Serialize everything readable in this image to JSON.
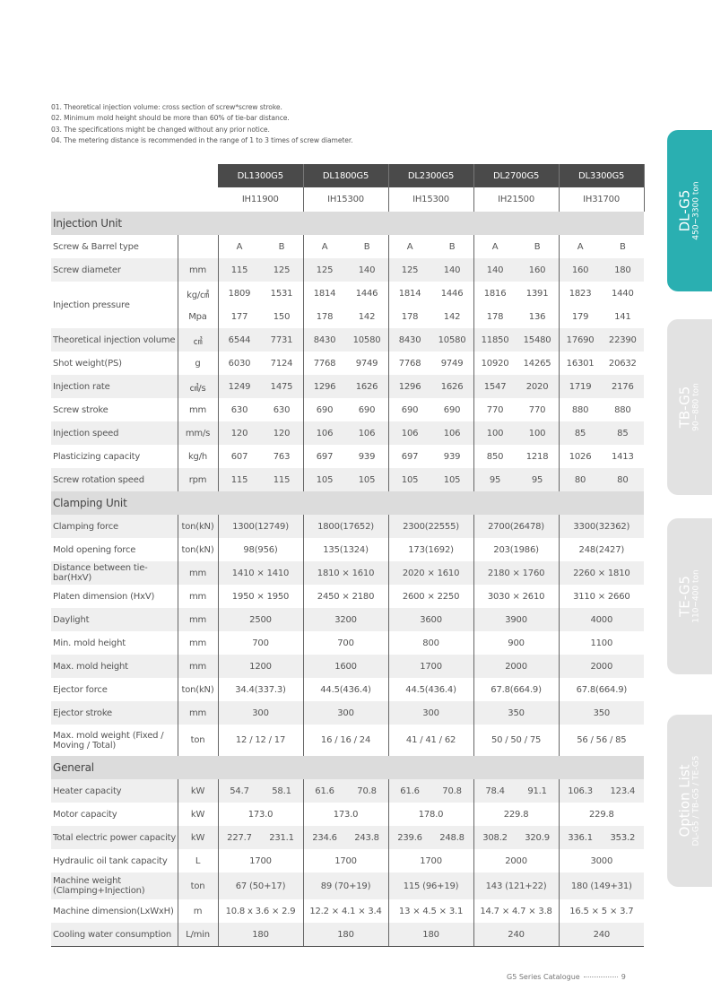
{
  "notes": [
    "01. Theoretical injection volume: cross section of screw*screw stroke.",
    "02. Minimum mold height should be more than 60% of tie-bar distance.",
    "03. The specifications might be changed without any prior notice.",
    "04. The metering distance is recommended in the range of 1 to 3 times of screw diameter."
  ],
  "models": [
    "DL1300G5",
    "DL1800G5",
    "DL2300G5",
    "DL2700G5",
    "DL3300G5"
  ],
  "injection_units": [
    "IH11900",
    "IH15300",
    "IH15300",
    "IH21500",
    "IH31700"
  ],
  "sections": [
    {
      "title": "Injection Unit",
      "rows": [
        {
          "label": "Screw & Barrel type",
          "unit": "",
          "pairs": [
            "A",
            "B",
            "A",
            "B",
            "A",
            "B",
            "A",
            "B",
            "A",
            "B"
          ]
        },
        {
          "label": "Screw diameter",
          "unit": "mm",
          "pairs": [
            "115",
            "125",
            "125",
            "140",
            "125",
            "140",
            "140",
            "160",
            "160",
            "180"
          ]
        },
        {
          "label": "Injection pressure",
          "unit": "kg/㎠",
          "pairs": [
            "1809",
            "1531",
            "1814",
            "1446",
            "1814",
            "1446",
            "1816",
            "1391",
            "1823",
            "1440"
          ],
          "unit2": "Mpa",
          "pairs2": [
            "177",
            "150",
            "178",
            "142",
            "178",
            "142",
            "178",
            "136",
            "179",
            "141"
          ]
        },
        {
          "label": "Theoretical injection volume",
          "unit": "㎤",
          "pairs": [
            "6544",
            "7731",
            "8430",
            "10580",
            "8430",
            "10580",
            "11850",
            "15480",
            "17690",
            "22390"
          ]
        },
        {
          "label": "Shot weight(PS)",
          "unit": "g",
          "pairs": [
            "6030",
            "7124",
            "7768",
            "9749",
            "7768",
            "9749",
            "10920",
            "14265",
            "16301",
            "20632"
          ]
        },
        {
          "label": "Injection rate",
          "unit": "㎤/s",
          "pairs": [
            "1249",
            "1475",
            "1296",
            "1626",
            "1296",
            "1626",
            "1547",
            "2020",
            "1719",
            "2176"
          ]
        },
        {
          "label": "Screw stroke",
          "unit": "mm",
          "pairs": [
            "630",
            "630",
            "690",
            "690",
            "690",
            "690",
            "770",
            "770",
            "880",
            "880"
          ]
        },
        {
          "label": "Injection speed",
          "unit": "mm/s",
          "pairs": [
            "120",
            "120",
            "106",
            "106",
            "106",
            "106",
            "100",
            "100",
            "85",
            "85"
          ]
        },
        {
          "label": "Plasticizing capacity",
          "unit": "kg/h",
          "pairs": [
            "607",
            "763",
            "697",
            "939",
            "697",
            "939",
            "850",
            "1218",
            "1026",
            "1413"
          ]
        },
        {
          "label": "Screw rotation speed",
          "unit": "rpm",
          "pairs": [
            "115",
            "115",
            "105",
            "105",
            "105",
            "105",
            "95",
            "95",
            "80",
            "80"
          ]
        }
      ]
    },
    {
      "title": "Clamping Unit",
      "rows": [
        {
          "label": "Clamping force",
          "unit": "ton(kN)",
          "values": [
            "1300(12749)",
            "1800(17652)",
            "2300(22555)",
            "2700(26478)",
            "3300(32362)"
          ]
        },
        {
          "label": "Mold opening force",
          "unit": "ton(kN)",
          "values": [
            "98(956)",
            "135(1324)",
            "173(1692)",
            "203(1986)",
            "248(2427)"
          ]
        },
        {
          "label": "Distance between tie-bar(HxV)",
          "unit": "mm",
          "values": [
            "1410 × 1410",
            "1810 × 1610",
            "2020 × 1610",
            "2180 × 1760",
            "2260 × 1810"
          ]
        },
        {
          "label": "Platen dimension (HxV)",
          "unit": "mm",
          "values": [
            "1950 × 1950",
            "2450 × 2180",
            "2600 × 2250",
            "3030 × 2610",
            "3110 × 2660"
          ]
        },
        {
          "label": "Daylight",
          "unit": "mm",
          "values": [
            "2500",
            "3200",
            "3600",
            "3900",
            "4000"
          ]
        },
        {
          "label": "Min. mold height",
          "unit": "mm",
          "values": [
            "700",
            "700",
            "800",
            "900",
            "1100"
          ]
        },
        {
          "label": "Max. mold height",
          "unit": "mm",
          "values": [
            "1200",
            "1600",
            "1700",
            "2000",
            "2000"
          ]
        },
        {
          "label": "Ejector force",
          "unit": "ton(kN)",
          "values": [
            "34.4(337.3)",
            "44.5(436.4)",
            "44.5(436.4)",
            "67.8(664.9)",
            "67.8(664.9)"
          ]
        },
        {
          "label": "Ejector stroke",
          "unit": "mm",
          "values": [
            "300",
            "300",
            "300",
            "350",
            "350"
          ]
        },
        {
          "label": "Max. mold weight (Fixed / Moving / Total)",
          "unit": "ton",
          "values": [
            "12 / 12 / 17",
            "16 / 16 / 24",
            "41 / 41 / 62",
            "50 / 50 / 75",
            "56 / 56 / 85"
          ],
          "tall": true
        }
      ]
    },
    {
      "title": "General",
      "rows": [
        {
          "label": "Heater capacity",
          "unit": "kW",
          "pairs": [
            "54.7",
            "58.1",
            "61.6",
            "70.8",
            "61.6",
            "70.8",
            "78.4",
            "91.1",
            "106.3",
            "123.4"
          ]
        },
        {
          "label": "Motor capacity",
          "unit": "kW",
          "values": [
            "173.0",
            "173.0",
            "178.0",
            "229.8",
            "229.8"
          ]
        },
        {
          "label": "Total electric power capacity",
          "unit": "kW",
          "pairs": [
            "227.7",
            "231.1",
            "234.6",
            "243.8",
            "239.6",
            "248.8",
            "308.2",
            "320.9",
            "336.1",
            "353.2"
          ]
        },
        {
          "label": "Hydraulic oil tank capacity",
          "unit": "L",
          "values": [
            "1700",
            "1700",
            "1700",
            "2000",
            "3000"
          ]
        },
        {
          "label": "Machine weight (Clamping+Injection)",
          "unit": "ton",
          "values": [
            "67 (50+17)",
            "89 (70+19)",
            "115 (96+19)",
            "143 (121+22)",
            "180 (149+31)"
          ],
          "tall2": true
        },
        {
          "label": "Machine dimension(LxWxH)",
          "unit": "m",
          "values": [
            "10.8 x 3.6 × 2.9",
            "12.2 × 4.1 × 3.4",
            "13 × 4.5 × 3.1",
            "14.7 × 4.7 × 3.8",
            "16.5 × 5 × 3.7"
          ]
        },
        {
          "label": "Cooling water consumption",
          "unit": "L/min",
          "values": [
            "180",
            "180",
            "180",
            "240",
            "240"
          ]
        }
      ]
    }
  ],
  "side_tabs": [
    {
      "title": "DL-G5",
      "subtitle": "450~3300 ton",
      "active": true
    },
    {
      "title": "TB-G5",
      "subtitle": "90~880 ton",
      "active": false
    },
    {
      "title": "TE-G5",
      "subtitle": "110~400 ton",
      "active": false
    },
    {
      "title": "Option List",
      "subtitle": "DL-G5 / TB-G5 / TE-G5",
      "active": false
    }
  ],
  "footer": {
    "catalogue": "G5 Series Catalogue",
    "page": "9"
  },
  "colors": {
    "accent": "#2aafb1",
    "header": "#4a4a4a",
    "section": "#dcdcdc",
    "stripe": "#efefef"
  }
}
